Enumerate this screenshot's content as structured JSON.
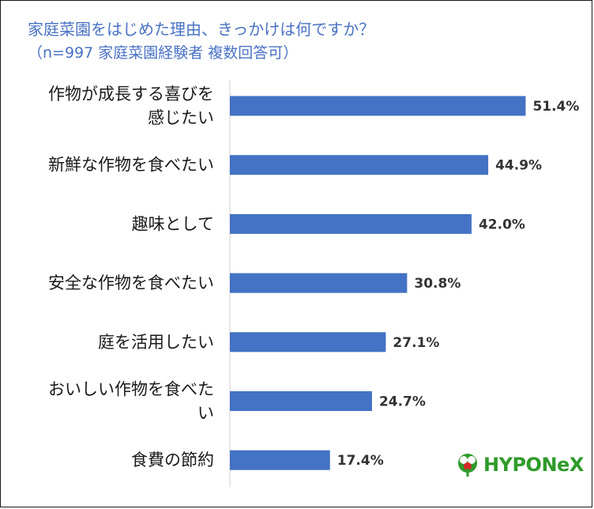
{
  "header": {
    "title": "家庭菜園をはじめた理由、きっかけは何ですか？",
    "subtitle": "（n=997 家庭菜園経験者 複数回答可）"
  },
  "logo": {
    "text": "HYPONeX",
    "icon": "plant-logo-icon"
  },
  "chart_data": {
    "type": "bar",
    "orientation": "horizontal",
    "categories": [
      "作物が成長する喜びを感じたい",
      "新鮮な作物を食べたい",
      "趣味として",
      "安全な作物を食べたい",
      "庭を活用したい",
      "おいしい作物を食べたい",
      "食費の節約"
    ],
    "values": [
      51.4,
      44.9,
      42.0,
      30.8,
      27.1,
      24.7,
      17.4
    ],
    "value_labels": [
      "51.4%",
      "44.9%",
      "42.0%",
      "30.8%",
      "27.1%",
      "24.7%",
      "17.4%"
    ],
    "category_lines": [
      [
        "作物が成長する喜びを",
        "感じたい"
      ],
      [
        "新鮮な作物を食べたい"
      ],
      [
        "趣味として"
      ],
      [
        "安全な作物を食べたい"
      ],
      [
        "庭を活用したい"
      ],
      [
        "おいしい作物を食べた",
        "い"
      ],
      [
        "食費の節約"
      ]
    ],
    "unit": "%",
    "grid": false,
    "bar_color": "#4472c4"
  }
}
